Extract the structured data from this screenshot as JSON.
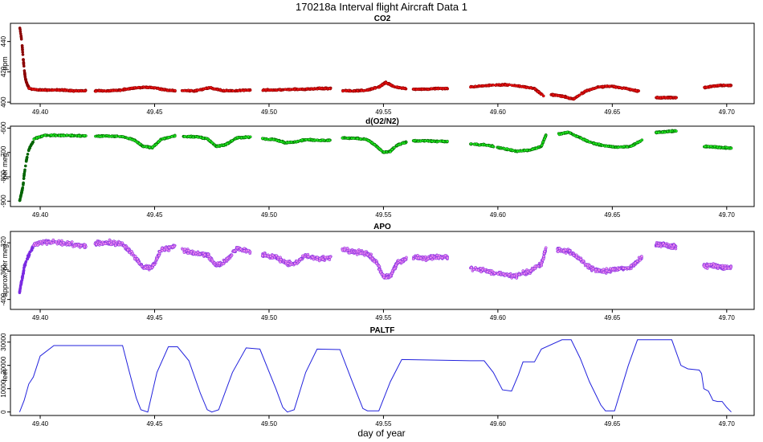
{
  "title": "170218a   Interval flight Aircraft Data 1",
  "xlabel": "day of year",
  "colors": {
    "co2": "#ee1111",
    "co2_edge": "#8b0000",
    "o2n2": "#22ee22",
    "o2n2_edge": "#006400",
    "apo": "#ee88ee",
    "apo_edge": "#7b2be2",
    "paltf": "#2222dd"
  },
  "chart_data": [
    {
      "type": "scatter",
      "title": "CO2",
      "ylabel": "ppm",
      "xlim": [
        49.387,
        49.712
      ],
      "ylim": [
        399,
        452
      ],
      "xticks": [
        49.4,
        49.45,
        49.5,
        49.55,
        49.6,
        49.65,
        49.7
      ],
      "yticks": [
        400,
        420,
        440
      ],
      "early_segment": {
        "x": [
          49.391,
          49.392,
          49.3925,
          49.393,
          49.3935,
          49.394,
          49.3945,
          49.395
        ],
        "y": [
          450,
          440,
          430,
          422,
          416,
          413,
          411,
          410
        ]
      },
      "segments": [
        {
          "x": [
            49.395,
            49.4,
            49.405,
            49.41,
            49.415,
            49.42
          ],
          "y": [
            409,
            408,
            408,
            408,
            407.5,
            407.5
          ]
        },
        {
          "x": [
            49.424,
            49.43,
            49.435,
            49.44,
            49.445,
            49.45,
            49.455,
            49.459
          ],
          "y": [
            407.5,
            407.5,
            408,
            409,
            410,
            409.5,
            408,
            407.5
          ]
        },
        {
          "x": [
            49.462,
            49.468,
            49.474,
            49.48,
            49.486,
            49.492
          ],
          "y": [
            407.5,
            407.5,
            409.5,
            407.5,
            407.5,
            408
          ]
        },
        {
          "x": [
            49.497,
            49.503,
            49.51,
            49.516,
            49.522,
            49.527
          ],
          "y": [
            408,
            408,
            408.5,
            408.5,
            409,
            409
          ]
        },
        {
          "x": [
            49.532,
            49.538,
            49.543,
            49.548,
            49.551,
            49.555,
            49.56
          ],
          "y": [
            407.5,
            407.5,
            408,
            410,
            413,
            410,
            409
          ]
        },
        {
          "x": [
            49.563,
            49.568,
            49.573,
            49.578
          ],
          "y": [
            408.5,
            408.5,
            409,
            409
          ]
        },
        {
          "x": [
            49.588,
            49.595,
            49.603,
            49.61,
            49.616,
            49.62
          ],
          "y": [
            410,
            411,
            411.5,
            410.5,
            409,
            404
          ]
        },
        {
          "x": [
            49.623,
            49.628,
            49.633,
            49.638,
            49.644,
            49.65,
            49.656,
            49.662
          ],
          "y": [
            405,
            404,
            402,
            407,
            410,
            410.5,
            409,
            407
          ]
        },
        {
          "x": [
            49.669,
            49.672,
            49.675,
            49.678
          ],
          "y": [
            403,
            403,
            403,
            403
          ]
        },
        {
          "x": [
            49.69,
            49.694,
            49.698,
            49.702
          ],
          "y": [
            409.5,
            410.5,
            411,
            411
          ]
        }
      ]
    },
    {
      "type": "scatter",
      "title": "d(O2/N2)",
      "ylabel": "per meg",
      "xlim": [
        49.387,
        49.712
      ],
      "ylim": [
        -922,
        -592
      ],
      "xticks": [
        49.4,
        49.45,
        49.5,
        49.55,
        49.6,
        49.65,
        49.7
      ],
      "yticks": [
        -600,
        -700,
        -800,
        -900
      ],
      "early_segment": {
        "x": [
          49.391,
          49.3915,
          49.392,
          49.3925,
          49.393,
          49.394,
          49.395,
          49.396,
          49.397
        ],
        "y": [
          -900,
          -880,
          -860,
          -840,
          -790,
          -730,
          -690,
          -670,
          -655
        ]
      },
      "segments": [
        {
          "x": [
            49.397,
            49.402,
            49.408,
            49.414,
            49.42
          ],
          "y": [
            -645,
            -630,
            -630,
            -630,
            -632
          ]
        },
        {
          "x": [
            49.424,
            49.43,
            49.436,
            49.441,
            49.445,
            49.449,
            49.453,
            49.459
          ],
          "y": [
            -633,
            -633,
            -635,
            -648,
            -675,
            -680,
            -645,
            -632
          ]
        },
        {
          "x": [
            49.462,
            49.468,
            49.473,
            49.477,
            49.481,
            49.486,
            49.492
          ],
          "y": [
            -635,
            -635,
            -643,
            -675,
            -668,
            -640,
            -637
          ]
        },
        {
          "x": [
            49.497,
            49.503,
            49.507,
            49.511,
            49.516,
            49.522,
            49.527
          ],
          "y": [
            -643,
            -648,
            -660,
            -658,
            -647,
            -650,
            -650
          ]
        },
        {
          "x": [
            49.532,
            49.538,
            49.543,
            49.547,
            49.55,
            49.553,
            49.556,
            49.56
          ],
          "y": [
            -640,
            -642,
            -647,
            -675,
            -700,
            -695,
            -670,
            -657
          ]
        },
        {
          "x": [
            49.563,
            49.568,
            49.573,
            49.578
          ],
          "y": [
            -653,
            -652,
            -654,
            -655
          ]
        },
        {
          "x": [
            49.588,
            49.595,
            49.602,
            49.608,
            49.614,
            49.619,
            49.621
          ],
          "y": [
            -665,
            -670,
            -683,
            -695,
            -690,
            -675,
            -628
          ]
        },
        {
          "x": [
            49.626,
            49.631,
            49.636,
            49.641,
            49.646,
            49.652,
            49.658,
            49.663
          ],
          "y": [
            -625,
            -618,
            -640,
            -660,
            -672,
            -678,
            -675,
            -650
          ]
        },
        {
          "x": [
            49.669,
            49.672,
            49.675,
            49.678
          ],
          "y": [
            -618,
            -616,
            -613,
            -612
          ]
        },
        {
          "x": [
            49.69,
            49.694,
            49.698,
            49.702
          ],
          "y": [
            -675,
            -677,
            -680,
            -682
          ]
        }
      ]
    },
    {
      "type": "scatter",
      "title": "APO",
      "ylabel": "approx. per meg",
      "xlim": [
        49.387,
        49.712
      ],
      "ylim": [
        -414,
        -304
      ],
      "xticks": [
        49.4,
        49.45,
        49.5,
        49.55,
        49.6,
        49.65,
        49.7
      ],
      "yticks": [
        -320,
        -360,
        -400
      ],
      "early_segment": {
        "x": [
          49.391,
          49.3915,
          49.392,
          49.3925,
          49.393,
          49.394,
          49.395,
          49.396,
          49.397
        ],
        "y": [
          -390,
          -380,
          -372,
          -365,
          -355,
          -345,
          -338,
          -330,
          -325
        ]
      },
      "segments": [
        {
          "x": [
            49.397,
            49.402,
            49.408,
            49.414,
            49.42
          ],
          "y": [
            -323,
            -318,
            -320,
            -322,
            -325
          ]
        },
        {
          "x": [
            49.424,
            49.43,
            49.436,
            49.441,
            49.445,
            49.449,
            49.453,
            49.459
          ],
          "y": [
            -320,
            -320,
            -322,
            -338,
            -355,
            -355,
            -330,
            -325
          ]
        },
        {
          "x": [
            49.462,
            49.468,
            49.473,
            49.477,
            49.481,
            49.486,
            49.492
          ],
          "y": [
            -330,
            -335,
            -337,
            -352,
            -346,
            -328,
            -333
          ]
        },
        {
          "x": [
            49.497,
            49.503,
            49.507,
            49.511,
            49.516,
            49.522,
            49.527
          ],
          "y": [
            -337,
            -340,
            -348,
            -350,
            -338,
            -343,
            -340
          ]
        },
        {
          "x": [
            49.532,
            49.538,
            49.543,
            49.547,
            49.55,
            49.553,
            49.556,
            49.56
          ],
          "y": [
            -330,
            -333,
            -335,
            -348,
            -368,
            -367,
            -348,
            -343
          ]
        },
        {
          "x": [
            49.563,
            49.568,
            49.573,
            49.578
          ],
          "y": [
            -340,
            -342,
            -340,
            -340
          ]
        },
        {
          "x": [
            49.588,
            49.595,
            49.602,
            49.608,
            49.614,
            49.619,
            49.621
          ],
          "y": [
            -355,
            -360,
            -365,
            -367,
            -360,
            -350,
            -328
          ]
        },
        {
          "x": [
            49.626,
            49.631,
            49.636,
            49.641,
            49.646,
            49.652,
            49.658,
            49.663
          ],
          "y": [
            -330,
            -332,
            -343,
            -357,
            -360,
            -357,
            -355,
            -340
          ]
        },
        {
          "x": [
            49.669,
            49.672,
            49.675,
            49.678
          ],
          "y": [
            -323,
            -322,
            -325,
            -325
          ]
        },
        {
          "x": [
            49.69,
            49.694,
            49.698,
            49.702
          ],
          "y": [
            -353,
            -352,
            -355,
            -355
          ]
        }
      ]
    },
    {
      "type": "line",
      "title": "PALTF",
      "ylabel": "feet",
      "xlim": [
        49.387,
        49.712
      ],
      "ylim": [
        -1500,
        33000
      ],
      "xticks": [
        49.4,
        49.45,
        49.5,
        49.55,
        49.6,
        49.65,
        49.7
      ],
      "yticks": [
        0,
        10000,
        20000,
        30000
      ],
      "x": [
        49.391,
        49.393,
        49.395,
        49.397,
        49.4,
        49.406,
        49.436,
        49.439,
        49.442,
        49.444,
        49.447,
        49.451,
        49.456,
        49.46,
        49.465,
        49.47,
        49.473,
        49.475,
        49.478,
        49.484,
        49.49,
        49.496,
        49.503,
        49.506,
        49.508,
        49.511,
        49.516,
        49.521,
        49.531,
        49.536,
        49.541,
        49.543,
        49.548,
        49.553,
        49.558,
        49.588,
        49.594,
        49.598,
        49.602,
        49.606,
        49.609,
        49.611,
        49.616,
        49.619,
        49.628,
        49.632,
        49.636,
        49.64,
        49.645,
        49.647,
        49.651,
        49.657,
        49.661,
        49.676,
        49.68,
        49.683,
        49.688,
        49.689,
        49.69,
        49.692,
        49.694,
        49.696,
        49.698,
        49.7,
        49.702
      ],
      "y": [
        0,
        5000,
        12000,
        15000,
        24000,
        28500,
        28500,
        17000,
        6000,
        1000,
        0,
        17000,
        28000,
        28000,
        22000,
        8000,
        1000,
        0,
        1000,
        17000,
        27500,
        27000,
        10000,
        2000,
        0,
        1000,
        17000,
        27000,
        26800,
        14000,
        1500,
        500,
        500,
        13000,
        22500,
        22000,
        22000,
        17000,
        9500,
        9000,
        16000,
        21500,
        21500,
        27000,
        31000,
        31000,
        23000,
        13000,
        3000,
        500,
        500,
        20000,
        31000,
        31000,
        20000,
        18500,
        18000,
        16500,
        10000,
        9000,
        5000,
        4500,
        4500,
        2000,
        0
      ]
    }
  ]
}
